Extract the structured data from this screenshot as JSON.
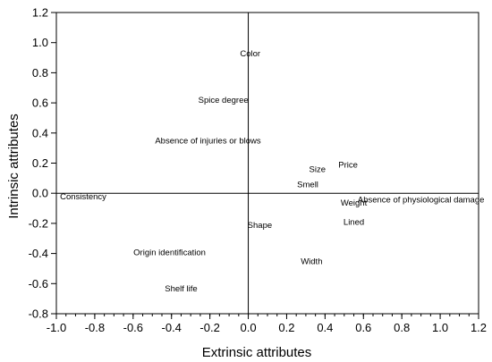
{
  "chart_data": {
    "type": "scatter",
    "xlabel": "Extrinsic attributes",
    "ylabel": "Intrinsic attributes",
    "xlim": [
      -1.0,
      1.2
    ],
    "ylim": [
      -0.8,
      1.2
    ],
    "x_major_step": 0.2,
    "x_minor_step": 0.05,
    "y_major_step": 0.2,
    "grid": false,
    "x_tick_labels": [
      "-1.0",
      "-0.8",
      "-0.6",
      "-0.4",
      "-0.2",
      "0.0",
      "0.2",
      "0.4",
      "0.6",
      "0.8",
      "1.0",
      "1.2"
    ],
    "y_tick_labels": [
      "-0.8",
      "-0.6",
      "-0.4",
      "-0.2",
      "0.0",
      "0.2",
      "0.4",
      "0.6",
      "0.8",
      "1.0",
      "1.2"
    ],
    "points": [
      {
        "label": "Color",
        "x": 0.01,
        "y": 0.93
      },
      {
        "label": "Spice degree",
        "x": -0.13,
        "y": 0.62
      },
      {
        "label": "Absence of injuries or blows",
        "x": -0.21,
        "y": 0.35
      },
      {
        "label": "Size",
        "x": 0.36,
        "y": 0.16
      },
      {
        "label": "Price",
        "x": 0.52,
        "y": 0.19
      },
      {
        "label": "Smell",
        "x": 0.31,
        "y": 0.06
      },
      {
        "label": "Consistency",
        "x": -0.86,
        "y": -0.02
      },
      {
        "label": "Weight",
        "x": 0.55,
        "y": -0.06
      },
      {
        "label": "Absence of physiological damage",
        "x": 0.9,
        "y": -0.04
      },
      {
        "label": "Shape",
        "x": 0.06,
        "y": -0.21
      },
      {
        "label": "Lined",
        "x": 0.55,
        "y": -0.19
      },
      {
        "label": "Origin identification",
        "x": -0.41,
        "y": -0.39
      },
      {
        "label": "Width",
        "x": 0.33,
        "y": -0.45
      },
      {
        "label": "Shelf life",
        "x": -0.35,
        "y": -0.63
      }
    ]
  }
}
